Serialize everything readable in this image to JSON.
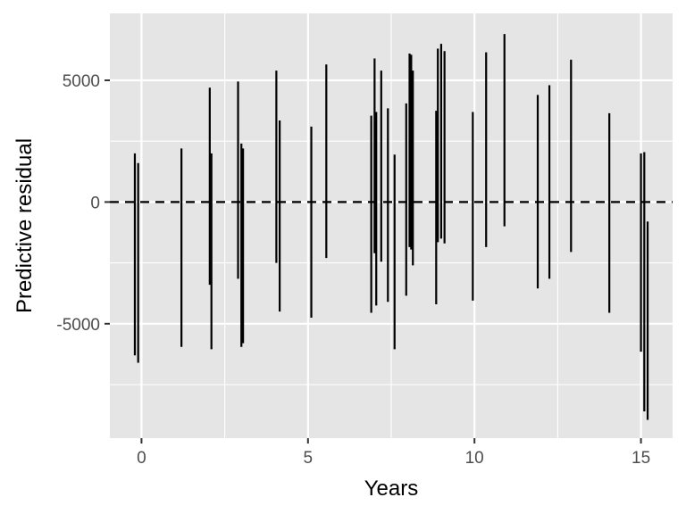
{
  "chart_data": {
    "type": "interval",
    "xlabel": "Years",
    "ylabel": "Predictive residual",
    "xlim": [
      -0.95,
      15.95
    ],
    "ylim": [
      -9700,
      7750
    ],
    "x_ticks": [
      0,
      5,
      10,
      15
    ],
    "y_ticks": [
      -5000,
      0,
      5000
    ],
    "x_minor": [
      2.5,
      7.5,
      12.5
    ],
    "y_minor": [
      -7500,
      -2500,
      2500
    ],
    "grid": true,
    "reference_line": {
      "y": 0,
      "style": "dashed"
    },
    "colors": {
      "panel": "#e5e5e5",
      "grid": "#ffffff",
      "mark": "#000000",
      "tick_text": "#4d4d4d"
    },
    "intervals": [
      {
        "x": -0.2,
        "low": -6300,
        "high": 2000
      },
      {
        "x": -0.1,
        "low": -6600,
        "high": 1600
      },
      {
        "x": 1.2,
        "low": -5950,
        "high": 2200
      },
      {
        "x": 2.05,
        "low": -3400,
        "high": 4700
      },
      {
        "x": 2.1,
        "low": -6050,
        "high": 2000
      },
      {
        "x": 2.9,
        "low": -3150,
        "high": 4950
      },
      {
        "x": 3.0,
        "low": -5950,
        "high": 2400
      },
      {
        "x": 3.05,
        "low": -5800,
        "high": 2200
      },
      {
        "x": 4.05,
        "low": -2500,
        "high": 5400
      },
      {
        "x": 4.15,
        "low": -4500,
        "high": 3350
      },
      {
        "x": 5.1,
        "low": -4750,
        "high": 3100
      },
      {
        "x": 5.55,
        "low": -2300,
        "high": 5650
      },
      {
        "x": 6.9,
        "low": -4550,
        "high": 3550
      },
      {
        "x": 7.0,
        "low": -2100,
        "high": 5900
      },
      {
        "x": 7.05,
        "low": -4250,
        "high": 3700
      },
      {
        "x": 7.2,
        "low": -2450,
        "high": 5400
      },
      {
        "x": 7.4,
        "low": -4100,
        "high": 3850
      },
      {
        "x": 7.6,
        "low": -6050,
        "high": 1950
      },
      {
        "x": 7.95,
        "low": -3850,
        "high": 4050
      },
      {
        "x": 8.05,
        "low": -1850,
        "high": 6100
      },
      {
        "x": 8.1,
        "low": -1950,
        "high": 6050
      },
      {
        "x": 8.15,
        "low": -2600,
        "high": 5400
      },
      {
        "x": 8.85,
        "low": -4200,
        "high": 3750
      },
      {
        "x": 8.9,
        "low": -1650,
        "high": 6300
      },
      {
        "x": 9.0,
        "low": -1500,
        "high": 6500
      },
      {
        "x": 9.1,
        "low": -1700,
        "high": 6200
      },
      {
        "x": 9.95,
        "low": -4050,
        "high": 3700
      },
      {
        "x": 10.35,
        "low": -1850,
        "high": 6150
      },
      {
        "x": 10.9,
        "low": -1000,
        "high": 6900
      },
      {
        "x": 11.9,
        "low": -3550,
        "high": 4400
      },
      {
        "x": 12.25,
        "low": -3150,
        "high": 4800
      },
      {
        "x": 12.9,
        "low": -2050,
        "high": 5850
      },
      {
        "x": 14.05,
        "low": -4550,
        "high": 3650
      },
      {
        "x": 15.0,
        "low": -6150,
        "high": 2000
      },
      {
        "x": 15.1,
        "low": -8600,
        "high": 2050
      },
      {
        "x": 15.2,
        "low": -8950,
        "high": -800
      }
    ]
  }
}
